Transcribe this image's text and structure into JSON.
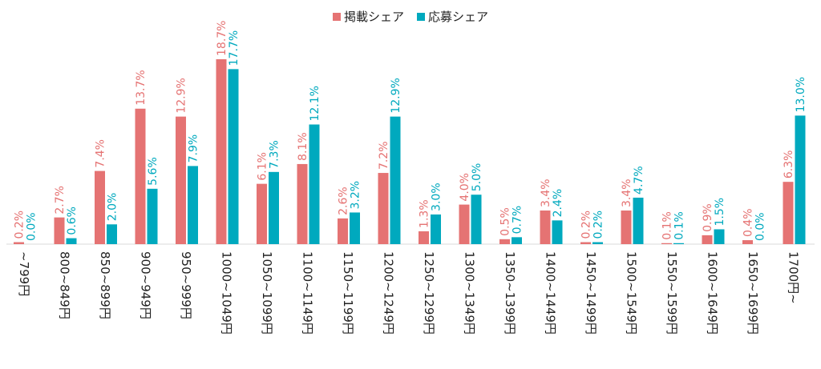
{
  "chart_data": {
    "type": "bar",
    "categories": [
      "~799円",
      "800~849円",
      "850~899円",
      "900~949円",
      "950~999円",
      "1000~1049円",
      "1050~1099円",
      "1100~1149円",
      "1150~1199円",
      "1200~1249円",
      "1250~1299円",
      "1300~1349円",
      "1350~1399円",
      "1400~1449円",
      "1450~1499円",
      "1500~1549円",
      "1550~1599円",
      "1600~1649円",
      "1650~1699円",
      "1700円~"
    ],
    "series": [
      {
        "name": "掲載シェア",
        "color": "#e57373",
        "values": [
          0.2,
          2.7,
          7.4,
          13.7,
          12.9,
          18.7,
          6.1,
          8.1,
          2.6,
          7.2,
          1.3,
          4.0,
          0.5,
          3.4,
          0.2,
          3.4,
          0.1,
          0.9,
          0.4,
          6.3
        ],
        "labels": [
          "0.2%",
          "2.7%",
          "7.4%",
          "13.7%",
          "12.9%",
          "18.7%",
          "6.1%",
          "8.1%",
          "2.6%",
          "7.2%",
          "1.3%",
          "4.0%",
          "0.5%",
          "3.4%",
          "0.2%",
          "3.4%",
          "0.1%",
          "0.9%",
          "0.4%",
          "6.3%"
        ]
      },
      {
        "name": "応募シェア",
        "color": "#00a9be",
        "values": [
          0.0,
          0.6,
          2.0,
          5.6,
          7.9,
          17.7,
          7.3,
          12.1,
          3.2,
          12.9,
          3.0,
          5.0,
          0.7,
          2.4,
          0.2,
          4.7,
          0.1,
          1.5,
          0.0,
          13.0
        ],
        "labels": [
          "0.0%",
          "0.6%",
          "2.0%",
          "5.6%",
          "7.9%",
          "17.7%",
          "7.3%",
          "12.1%",
          "3.2%",
          "12.9%",
          "3.0%",
          "5.0%",
          "0.7%",
          "2.4%",
          "0.2%",
          "4.7%",
          "0.1%",
          "1.5%",
          "0.0%",
          "13.0%"
        ]
      }
    ],
    "ylim": [
      0,
      18.7
    ],
    "legend_position": "top-center",
    "grid": false
  }
}
